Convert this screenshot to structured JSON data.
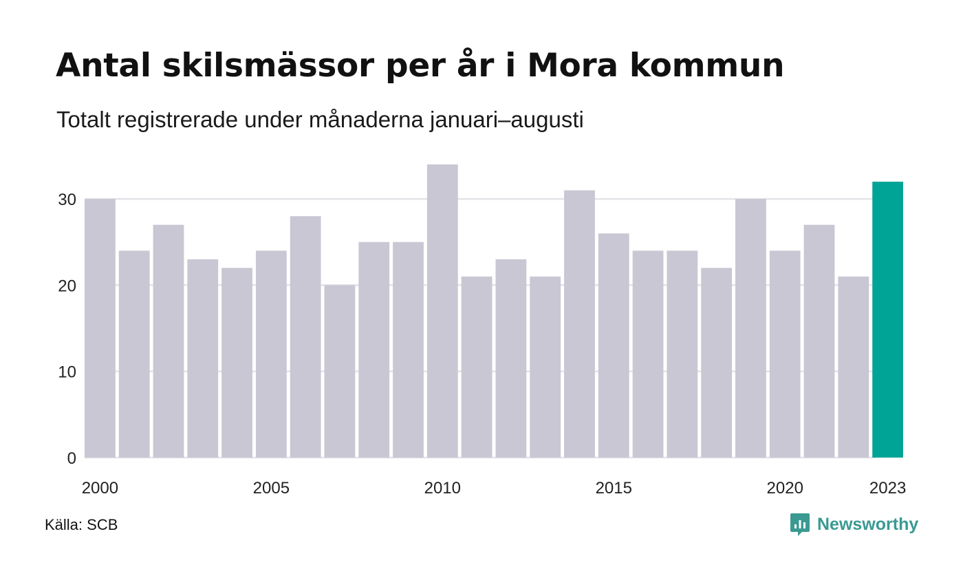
{
  "chart_data": {
    "type": "bar",
    "title": "Antal skilsmässor per år i Mora kommun",
    "subtitle": "Totalt registrerade under månaderna januari–augusti",
    "categories": [
      "2000",
      "2001",
      "2002",
      "2003",
      "2004",
      "2005",
      "2006",
      "2007",
      "2008",
      "2009",
      "2010",
      "2011",
      "2012",
      "2013",
      "2014",
      "2015",
      "2016",
      "2017",
      "2018",
      "2019",
      "2020",
      "2021",
      "2022",
      "2023"
    ],
    "values": [
      30,
      24,
      27,
      23,
      22,
      24,
      28,
      20,
      25,
      25,
      34,
      21,
      23,
      21,
      31,
      26,
      24,
      24,
      22,
      30,
      24,
      27,
      21,
      32
    ],
    "x_tick_labels": [
      "2000",
      "2005",
      "2010",
      "2015",
      "2020",
      "2023"
    ],
    "y_ticks": [
      0,
      10,
      20,
      30
    ],
    "ylim": [
      0,
      34
    ],
    "grid": true,
    "highlight_category": "2023",
    "colors": {
      "bar": "#c8c7d3",
      "highlight": "#00a497",
      "grid": "#e3e3e8"
    }
  },
  "footer": {
    "source": "Källa: SCB",
    "brand": "Newsworthy",
    "brand_icon": "newsworthy-logo-icon",
    "brand_color": "#3a9a92"
  }
}
